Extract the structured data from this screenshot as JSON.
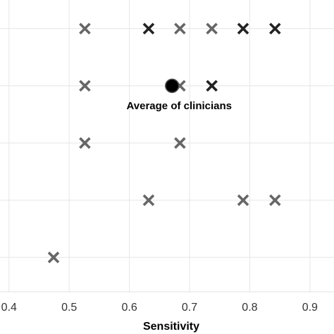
{
  "chart_data": {
    "type": "scatter",
    "title": "",
    "xlabel": "Sensitivity",
    "ylabel": "",
    "xlim": [
      0.385,
      0.94
    ],
    "ylim": [
      0.4,
      5.5
    ],
    "x_ticks": [
      0.4,
      0.5,
      0.6,
      0.7,
      0.8,
      0.9
    ],
    "x_tick_labels": [
      "0.4",
      "0.5",
      "0.6",
      "0.7",
      "0.8",
      "0.9"
    ],
    "y_gridlines": [
      1,
      2,
      3,
      4,
      5
    ],
    "grid": true,
    "legend": "none",
    "series": [
      {
        "marker": "x",
        "color": "#666666",
        "points": [
          {
            "x": 0.526,
            "y": 5
          },
          {
            "x": 0.684,
            "y": 5
          },
          {
            "x": 0.737,
            "y": 5
          },
          {
            "x": 0.526,
            "y": 4
          },
          {
            "x": 0.684,
            "y": 4
          },
          {
            "x": 0.526,
            "y": 3
          },
          {
            "x": 0.684,
            "y": 3
          },
          {
            "x": 0.632,
            "y": 2
          },
          {
            "x": 0.789,
            "y": 2
          },
          {
            "x": 0.842,
            "y": 2
          },
          {
            "x": 0.474,
            "y": 1
          }
        ]
      },
      {
        "marker": "x",
        "color": "#222222",
        "points": [
          {
            "x": 0.632,
            "y": 5
          },
          {
            "x": 0.789,
            "y": 5
          },
          {
            "x": 0.842,
            "y": 5
          },
          {
            "x": 0.737,
            "y": 4
          }
        ]
      },
      {
        "marker": "circle",
        "color": "#000000",
        "points": [
          {
            "x": 0.671,
            "y": 4
          }
        ]
      }
    ],
    "annotations": [
      {
        "text": "Average of clinicians",
        "x": 0.671,
        "y": 4
      }
    ]
  }
}
